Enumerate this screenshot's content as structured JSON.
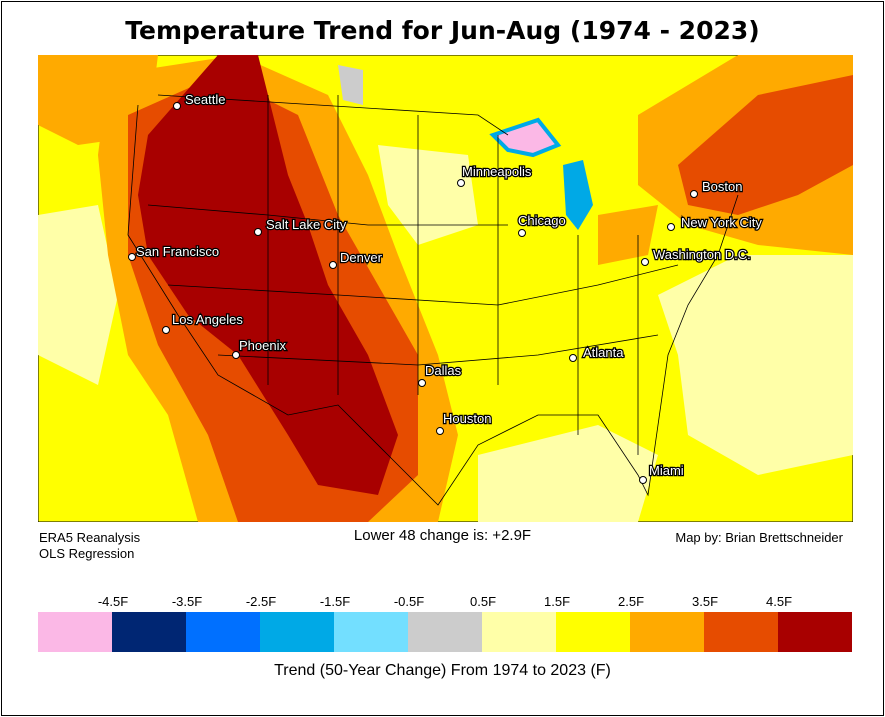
{
  "title": "Temperature Trend for Jun-Aug (1974 - 2023)",
  "notes": {
    "source_line1": "ERA5 Reanalysis",
    "source_line2": "OLS Regression",
    "summary": "Lower 48 change is: +2.9F",
    "credit": "Map by: Brian Brettschneider"
  },
  "legend": {
    "title": "Trend (50-Year Change) From 1974 to 2023 (F)",
    "labels": [
      "-4.5F",
      "-3.5F",
      "-2.5F",
      "-1.5F",
      "-0.5F",
      "0.5F",
      "1.5F",
      "2.5F",
      "3.5F",
      "4.5F"
    ],
    "colors": [
      "#fbb8e6",
      "#002673",
      "#0070ff",
      "#00a9e6",
      "#73dfff",
      "#cccccc",
      "#ffffa8",
      "#ffff00",
      "#ffaa00",
      "#e64c00",
      "#a80000"
    ]
  },
  "cities": [
    "Seattle",
    "San Francisco",
    "Salt Lake City",
    "Denver",
    "Los Angeles",
    "Phoenix",
    "Minneapolis",
    "Chicago",
    "Dallas",
    "Houston",
    "Atlanta",
    "Miami",
    "Washington D.C.",
    "New York City",
    "Boston"
  ]
}
